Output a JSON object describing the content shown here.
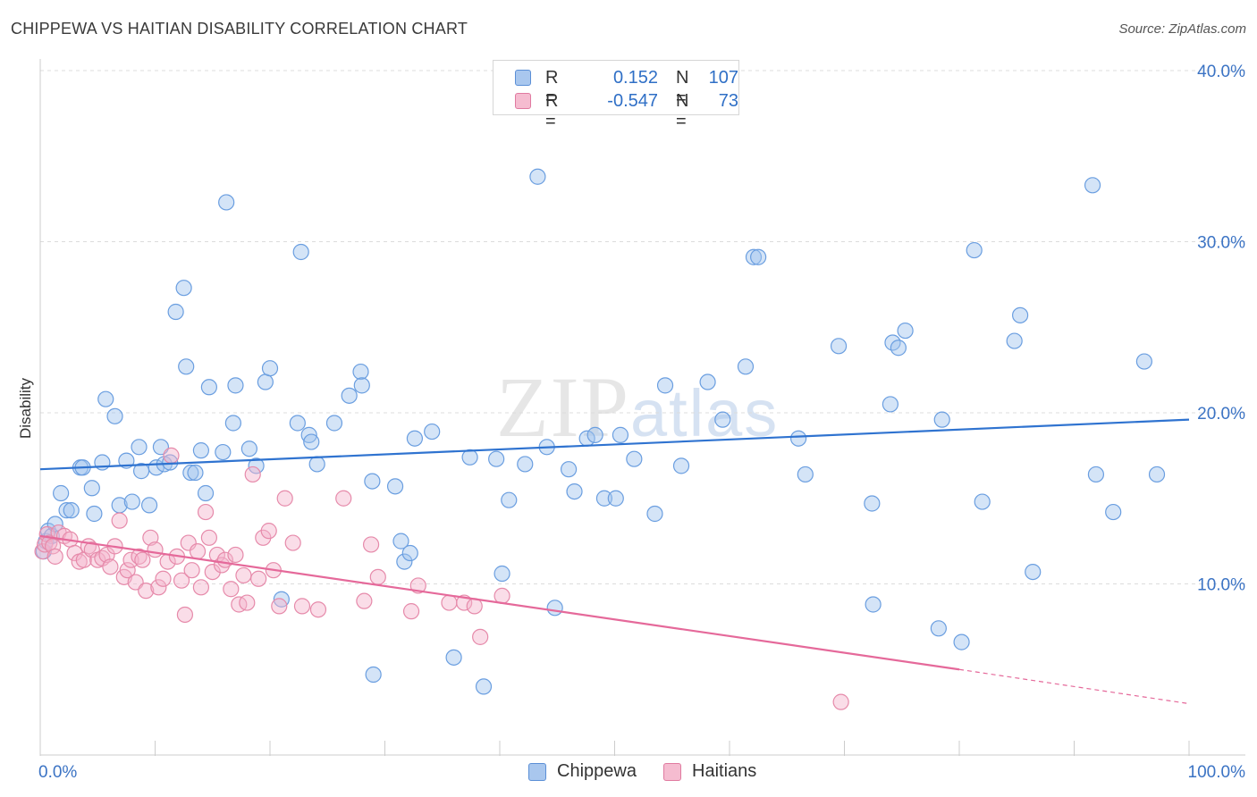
{
  "header": {
    "title": "CHIPPEWA VS HAITIAN DISABILITY CORRELATION CHART",
    "source": "Source: ZipAtlas.com"
  },
  "watermark": {
    "zip": "ZIP",
    "atlas": "atlas"
  },
  "legend": {
    "rows": [
      {
        "r_label": "R =",
        "r_value": "0.152",
        "n_label": "N =",
        "n_value": "107",
        "color": "#a9c7ee",
        "border": "#5b8fd6"
      },
      {
        "r_label": "R =",
        "r_value": "-0.547",
        "n_label": "N =",
        "n_value": "73",
        "color": "#f5bcd0",
        "border": "#e07aa0"
      }
    ]
  },
  "bottom_legend": [
    {
      "label": "Chippewa",
      "color": "#a9c7ee",
      "border": "#5b8fd6"
    },
    {
      "label": "Haitians",
      "color": "#f5bcd0",
      "border": "#e07aa0"
    }
  ],
  "chart_data": {
    "type": "scatter",
    "title": "CHIPPEWA VS HAITIAN DISABILITY CORRELATION CHART",
    "xlabel": "",
    "ylabel": "Disability",
    "xlim": [
      0,
      100
    ],
    "ylim": [
      0,
      40
    ],
    "x_tick_labels": [
      "0.0%",
      "100.0%"
    ],
    "y_ticks": [
      10,
      20,
      30,
      40
    ],
    "y_tick_labels": [
      "10.0%",
      "20.0%",
      "30.0%",
      "40.0%"
    ],
    "grid": "horizontal dashed",
    "legend_position": "top-center",
    "series": [
      {
        "name": "Chippewa",
        "color": "#6a9ee0",
        "fill": "rgba(160,195,238,0.45)",
        "points": [
          [
            0.3,
            11.9
          ],
          [
            0.5,
            12.5
          ],
          [
            0.7,
            13.1
          ],
          [
            1.0,
            12.8
          ],
          [
            1.3,
            13.5
          ],
          [
            1.8,
            15.3
          ],
          [
            2.3,
            14.3
          ],
          [
            2.7,
            14.3
          ],
          [
            3.5,
            16.8
          ],
          [
            3.7,
            16.8
          ],
          [
            4.5,
            15.6
          ],
          [
            4.7,
            14.1
          ],
          [
            5.4,
            17.1
          ],
          [
            5.7,
            20.8
          ],
          [
            6.5,
            19.8
          ],
          [
            6.9,
            14.6
          ],
          [
            7.5,
            17.2
          ],
          [
            8.0,
            14.8
          ],
          [
            8.6,
            18.0
          ],
          [
            8.8,
            16.6
          ],
          [
            9.5,
            14.6
          ],
          [
            10.1,
            16.8
          ],
          [
            10.5,
            18.0
          ],
          [
            10.8,
            17.0
          ],
          [
            11.3,
            17.1
          ],
          [
            11.8,
            25.9
          ],
          [
            12.5,
            27.3
          ],
          [
            12.7,
            22.7
          ],
          [
            13.1,
            16.5
          ],
          [
            13.5,
            16.5
          ],
          [
            14.0,
            17.8
          ],
          [
            14.4,
            15.3
          ],
          [
            14.7,
            21.5
          ],
          [
            15.9,
            17.7
          ],
          [
            16.2,
            32.3
          ],
          [
            16.8,
            19.4
          ],
          [
            17.0,
            21.6
          ],
          [
            18.2,
            17.9
          ],
          [
            18.8,
            16.9
          ],
          [
            19.6,
            21.8
          ],
          [
            20.0,
            22.6
          ],
          [
            21.0,
            9.1
          ],
          [
            22.4,
            19.4
          ],
          [
            22.7,
            29.4
          ],
          [
            23.4,
            18.7
          ],
          [
            23.6,
            18.3
          ],
          [
            24.1,
            17.0
          ],
          [
            25.6,
            19.4
          ],
          [
            26.9,
            21.0
          ],
          [
            27.9,
            22.4
          ],
          [
            28.0,
            21.6
          ],
          [
            28.9,
            16.0
          ],
          [
            29.0,
            4.7
          ],
          [
            30.9,
            15.7
          ],
          [
            31.4,
            12.5
          ],
          [
            31.7,
            11.3
          ],
          [
            32.2,
            11.8
          ],
          [
            32.6,
            18.5
          ],
          [
            34.1,
            18.9
          ],
          [
            36.0,
            5.7
          ],
          [
            37.4,
            17.4
          ],
          [
            38.6,
            4.0
          ],
          [
            39.7,
            17.3
          ],
          [
            40.2,
            10.6
          ],
          [
            40.8,
            14.9
          ],
          [
            42.2,
            17.0
          ],
          [
            43.3,
            33.8
          ],
          [
            44.1,
            18.0
          ],
          [
            44.8,
            8.6
          ],
          [
            46.0,
            16.7
          ],
          [
            46.5,
            15.4
          ],
          [
            47.6,
            18.5
          ],
          [
            48.3,
            18.7
          ],
          [
            49.1,
            15.0
          ],
          [
            50.1,
            15.0
          ],
          [
            50.5,
            18.7
          ],
          [
            51.7,
            17.3
          ],
          [
            53.5,
            14.1
          ],
          [
            54.4,
            21.6
          ],
          [
            55.8,
            16.9
          ],
          [
            58.1,
            21.8
          ],
          [
            59.4,
            19.6
          ],
          [
            61.4,
            22.7
          ],
          [
            62.1,
            29.1
          ],
          [
            62.5,
            29.1
          ],
          [
            66.0,
            18.5
          ],
          [
            66.6,
            16.4
          ],
          [
            69.5,
            23.9
          ],
          [
            72.4,
            14.7
          ],
          [
            72.5,
            8.8
          ],
          [
            74.0,
            20.5
          ],
          [
            74.2,
            24.1
          ],
          [
            74.7,
            23.8
          ],
          [
            75.3,
            24.8
          ],
          [
            78.2,
            7.4
          ],
          [
            78.5,
            19.6
          ],
          [
            80.2,
            6.6
          ],
          [
            81.3,
            29.5
          ],
          [
            82.0,
            14.8
          ],
          [
            84.8,
            24.2
          ],
          [
            85.3,
            25.7
          ],
          [
            86.4,
            10.7
          ],
          [
            91.6,
            33.3
          ],
          [
            91.9,
            16.4
          ],
          [
            93.4,
            14.2
          ],
          [
            96.1,
            23.0
          ],
          [
            97.2,
            16.4
          ]
        ]
      },
      {
        "name": "Haitians",
        "color": "#e68aaa",
        "fill": "rgba(245,180,205,0.45)",
        "points": [
          [
            0.2,
            11.9
          ],
          [
            0.4,
            12.3
          ],
          [
            0.6,
            12.9
          ],
          [
            0.8,
            12.4
          ],
          [
            1.1,
            12.2
          ],
          [
            1.3,
            11.6
          ],
          [
            1.6,
            13.0
          ],
          [
            2.1,
            12.8
          ],
          [
            2.6,
            12.6
          ],
          [
            3.0,
            11.8
          ],
          [
            3.4,
            11.3
          ],
          [
            3.8,
            11.4
          ],
          [
            4.2,
            12.2
          ],
          [
            4.5,
            12.0
          ],
          [
            5.0,
            11.4
          ],
          [
            5.4,
            11.5
          ],
          [
            5.8,
            11.7
          ],
          [
            6.1,
            11.0
          ],
          [
            6.5,
            12.2
          ],
          [
            6.9,
            13.7
          ],
          [
            7.3,
            10.4
          ],
          [
            7.6,
            10.8
          ],
          [
            7.9,
            11.4
          ],
          [
            8.3,
            10.1
          ],
          [
            8.6,
            11.6
          ],
          [
            8.9,
            11.4
          ],
          [
            9.2,
            9.6
          ],
          [
            9.6,
            12.7
          ],
          [
            10.0,
            12.0
          ],
          [
            10.3,
            9.8
          ],
          [
            10.7,
            10.3
          ],
          [
            11.1,
            11.3
          ],
          [
            11.4,
            17.5
          ],
          [
            11.9,
            11.6
          ],
          [
            12.3,
            10.2
          ],
          [
            12.6,
            8.2
          ],
          [
            12.9,
            12.4
          ],
          [
            13.2,
            10.8
          ],
          [
            13.7,
            11.9
          ],
          [
            14.0,
            9.8
          ],
          [
            14.4,
            14.2
          ],
          [
            14.7,
            12.7
          ],
          [
            15.0,
            10.7
          ],
          [
            15.4,
            11.7
          ],
          [
            15.8,
            11.1
          ],
          [
            16.1,
            11.4
          ],
          [
            16.6,
            9.7
          ],
          [
            17.0,
            11.7
          ],
          [
            17.3,
            8.8
          ],
          [
            17.7,
            10.5
          ],
          [
            18.0,
            8.9
          ],
          [
            18.5,
            16.4
          ],
          [
            19.0,
            10.3
          ],
          [
            19.4,
            12.7
          ],
          [
            19.9,
            13.1
          ],
          [
            20.3,
            10.8
          ],
          [
            20.8,
            8.7
          ],
          [
            21.3,
            15.0
          ],
          [
            22.0,
            12.4
          ],
          [
            22.8,
            8.7
          ],
          [
            24.2,
            8.5
          ],
          [
            26.4,
            15.0
          ],
          [
            28.2,
            9.0
          ],
          [
            28.8,
            12.3
          ],
          [
            29.4,
            10.4
          ],
          [
            32.3,
            8.4
          ],
          [
            32.9,
            9.9
          ],
          [
            35.6,
            8.9
          ],
          [
            36.9,
            8.9
          ],
          [
            37.8,
            8.7
          ],
          [
            38.3,
            6.9
          ],
          [
            40.2,
            9.3
          ],
          [
            69.7,
            3.1
          ]
        ]
      }
    ],
    "trendlines": [
      {
        "series": "Chippewa",
        "x": [
          0,
          100
        ],
        "y": [
          16.7,
          19.6
        ],
        "style": "solid"
      },
      {
        "series": "Haitians",
        "x": [
          0,
          80
        ],
        "y": [
          12.8,
          5.0
        ],
        "style": "solid",
        "dashed_extension_x": [
          80,
          100
        ],
        "dashed_extension_y": [
          5.0,
          3.0
        ]
      }
    ]
  }
}
